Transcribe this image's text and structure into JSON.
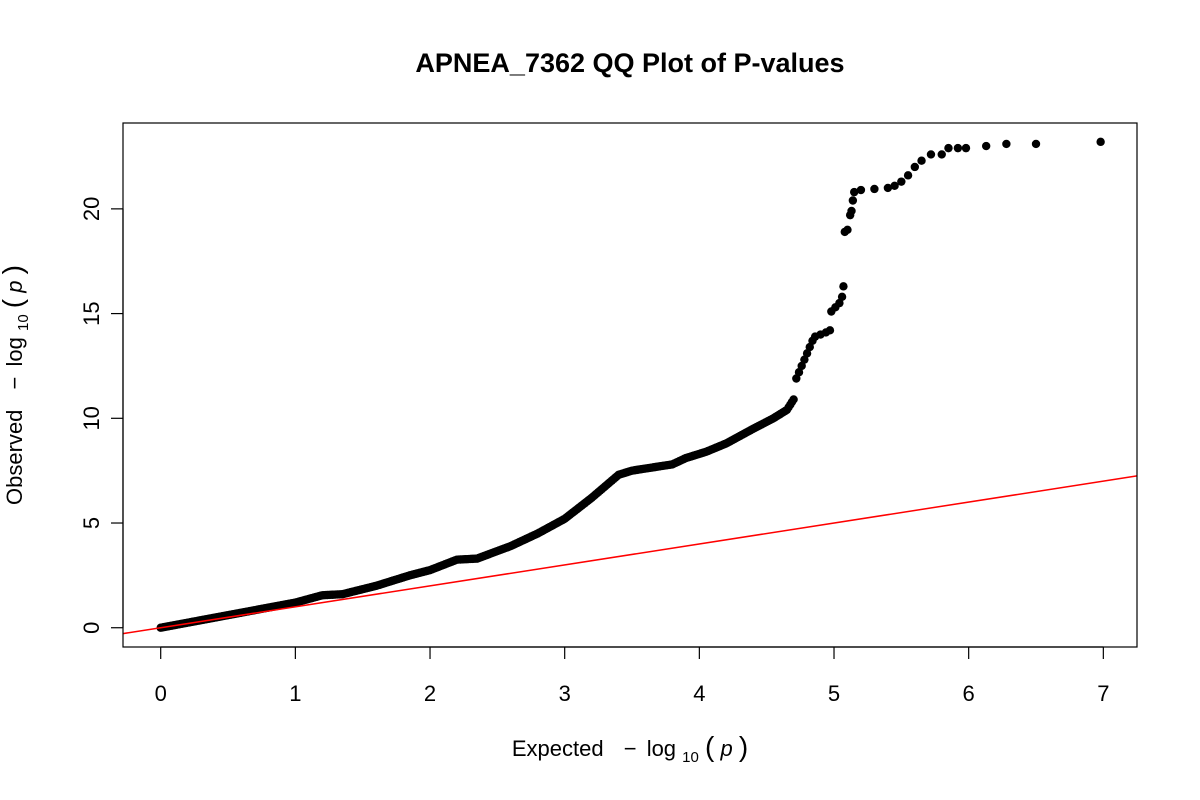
{
  "chart_data": {
    "type": "scatter",
    "title": "APNEA_7362 QQ Plot of P-values",
    "xlabel": {
      "prefix": "Expected",
      "minus": "−",
      "log": "log",
      "sub": "10",
      "open": "(",
      "var": "p",
      "close": ")"
    },
    "ylabel": {
      "prefix": "Observed",
      "minus": "−",
      "log": "log",
      "sub": "10",
      "open": "(",
      "var": "p",
      "close": ")"
    },
    "xlim": [
      -0.28,
      7.25
    ],
    "ylim": [
      -0.92,
      24.1
    ],
    "xticks": [
      0,
      1,
      2,
      3,
      4,
      5,
      6,
      7
    ],
    "yticks": [
      0,
      5,
      10,
      15,
      20
    ],
    "grid": false,
    "legend": "none",
    "point_color": "#000000",
    "reference_line": {
      "slope": 1,
      "intercept": 0,
      "color": "#ff0000"
    },
    "curve": [
      [
        0,
        0
      ],
      [
        0.5,
        0.6
      ],
      [
        1.0,
        1.2
      ],
      [
        1.2,
        1.55
      ],
      [
        1.35,
        1.6
      ],
      [
        1.6,
        2.0
      ],
      [
        1.85,
        2.5
      ],
      [
        2.0,
        2.75
      ],
      [
        2.2,
        3.25
      ],
      [
        2.35,
        3.3
      ],
      [
        2.6,
        3.9
      ],
      [
        2.8,
        4.5
      ],
      [
        3.0,
        5.2
      ],
      [
        3.2,
        6.2
      ],
      [
        3.4,
        7.3
      ],
      [
        3.5,
        7.5
      ],
      [
        3.6,
        7.6
      ],
      [
        3.8,
        7.8
      ],
      [
        3.9,
        8.1
      ],
      [
        4.05,
        8.4
      ],
      [
        4.2,
        8.8
      ],
      [
        4.4,
        9.5
      ],
      [
        4.55,
        10.0
      ],
      [
        4.65,
        10.4
      ],
      [
        4.7,
        10.9
      ]
    ],
    "tail_points": [
      [
        4.72,
        11.9
      ],
      [
        4.74,
        12.2
      ],
      [
        4.76,
        12.5
      ],
      [
        4.78,
        12.8
      ],
      [
        4.8,
        13.1
      ],
      [
        4.82,
        13.4
      ],
      [
        4.84,
        13.7
      ],
      [
        4.86,
        13.9
      ],
      [
        4.9,
        14.0
      ],
      [
        4.94,
        14.1
      ],
      [
        4.97,
        14.2
      ],
      [
        4.98,
        15.1
      ],
      [
        5.01,
        15.3
      ],
      [
        5.04,
        15.5
      ],
      [
        5.06,
        15.8
      ],
      [
        5.07,
        16.3
      ],
      [
        5.08,
        18.9
      ],
      [
        5.1,
        19.0
      ],
      [
        5.12,
        19.7
      ],
      [
        5.13,
        19.9
      ],
      [
        5.14,
        20.4
      ],
      [
        5.15,
        20.8
      ],
      [
        5.2,
        20.9
      ],
      [
        5.3,
        20.95
      ],
      [
        5.4,
        21.0
      ],
      [
        5.45,
        21.1
      ],
      [
        5.5,
        21.3
      ],
      [
        5.55,
        21.6
      ],
      [
        5.6,
        22.0
      ],
      [
        5.65,
        22.3
      ],
      [
        5.72,
        22.6
      ],
      [
        5.8,
        22.6
      ],
      [
        5.85,
        22.9
      ],
      [
        5.92,
        22.9
      ],
      [
        5.98,
        22.9
      ],
      [
        6.13,
        23.0
      ],
      [
        6.28,
        23.1
      ],
      [
        6.5,
        23.1
      ],
      [
        6.98,
        23.2
      ]
    ]
  }
}
